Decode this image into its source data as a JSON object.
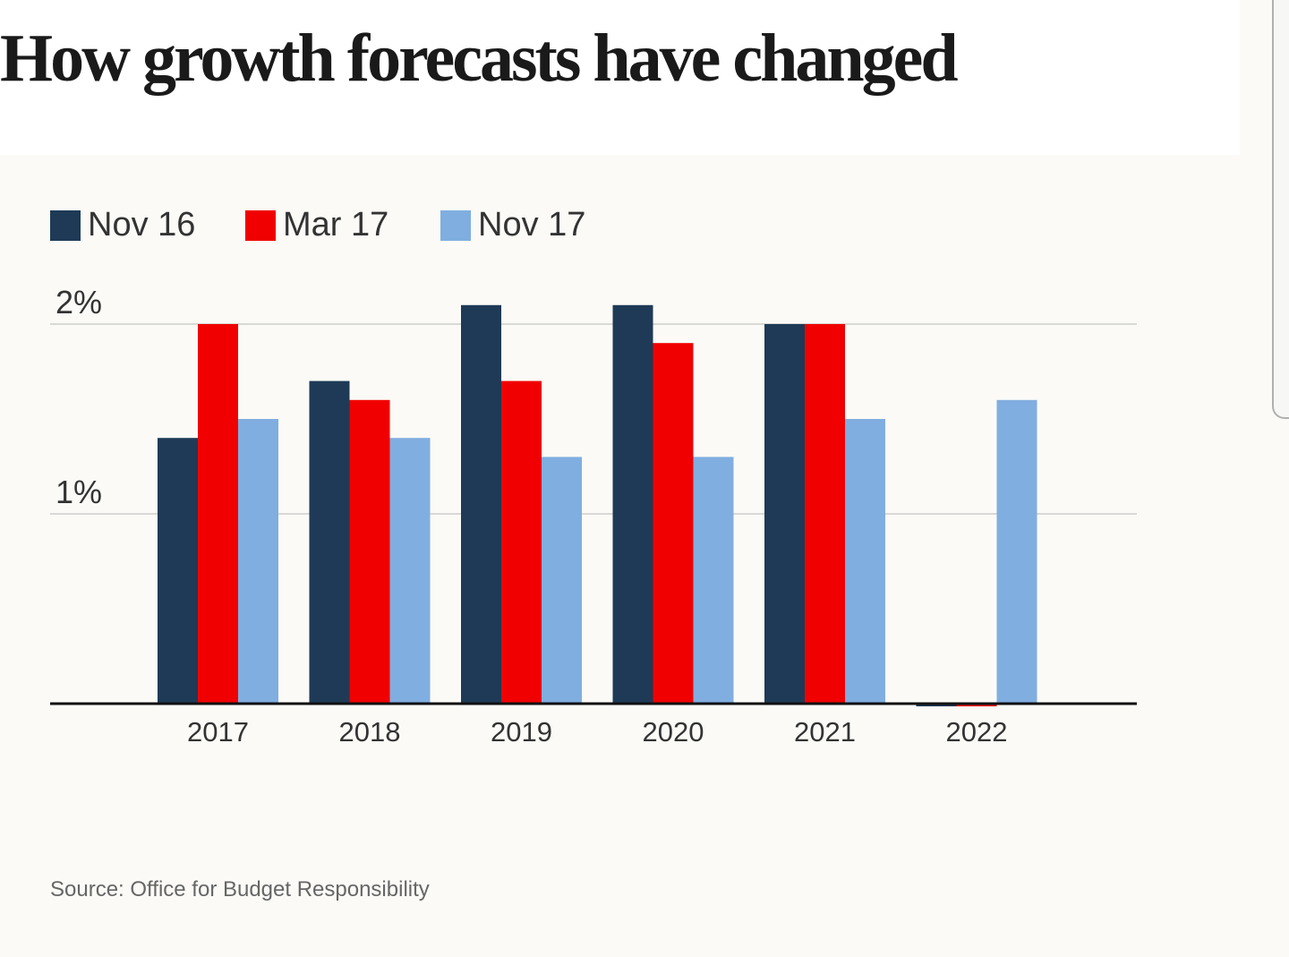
{
  "header": {
    "title": "How growth forecasts have changed"
  },
  "colors": {
    "nov16": "#1e3a56",
    "mar17": "#f00000",
    "nov17": "#80aee0",
    "grid": "#d8d8d6",
    "axis": "#111111",
    "text": "#333333"
  },
  "source": "Source: Office for Budget Responsibility",
  "chart_data": {
    "type": "bar",
    "title": "How growth forecasts have changed",
    "xlabel": "",
    "ylabel": "",
    "categories": [
      "2017",
      "2018",
      "2019",
      "2020",
      "2021",
      "2022"
    ],
    "series": [
      {
        "name": "Nov 16",
        "color": "#1e3a56",
        "values": [
          1.4,
          1.7,
          2.1,
          2.1,
          2.0,
          0
        ]
      },
      {
        "name": "Mar 17",
        "color": "#f00000",
        "values": [
          2.0,
          1.6,
          1.7,
          1.9,
          2.0,
          0
        ]
      },
      {
        "name": "Nov 17",
        "color": "#80aee0",
        "values": [
          1.5,
          1.4,
          1.3,
          1.3,
          1.5,
          1.6
        ]
      }
    ],
    "yticks": [
      1,
      2
    ],
    "ytick_labels": [
      "1%",
      "2%"
    ],
    "ylim": [
      0,
      2.2
    ],
    "grid": true,
    "legend_position": "top-left",
    "source": "Source: Office for Budget Responsibility"
  }
}
